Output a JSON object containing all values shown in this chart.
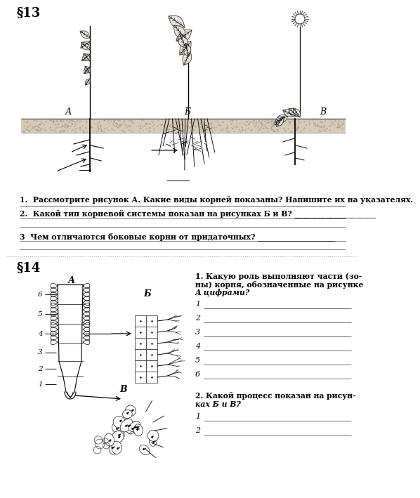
{
  "bg_color": "#ffffff",
  "section1": {
    "paragraph": "§13",
    "q1": "1.  Рассмотрите рисунок А. Какие виды корней показаны? Напишите их на указателях.",
    "q2": "2.  Какой тип корневой системы показан на рисунках Б и В? _____________________",
    "q3": "3  Чем отличаются боковые корни от придаточных? ____________________",
    "label_A": "А",
    "label_B": "Б",
    "label_V": "В"
  },
  "section2": {
    "paragraph": "§14",
    "label_A": "А",
    "label_B": "Б",
    "label_V": "В",
    "numbers": [
      "6",
      "5",
      "4",
      "3",
      "2",
      "1"
    ],
    "q1_title_line1": "1. Какую роль выполняют части (зо-",
    "q1_title_line2": "ны) корня, обозначенные на рисунке",
    "q1_title_line3": "А цифрами?",
    "q1_items": [
      "1",
      "2",
      "3",
      "4",
      "5",
      "6"
    ],
    "q2_title_line1": "2. Какой процесс показан на рисун-",
    "q2_title_line2": "ках Б и В?",
    "q2_items": [
      "1",
      "2"
    ]
  }
}
